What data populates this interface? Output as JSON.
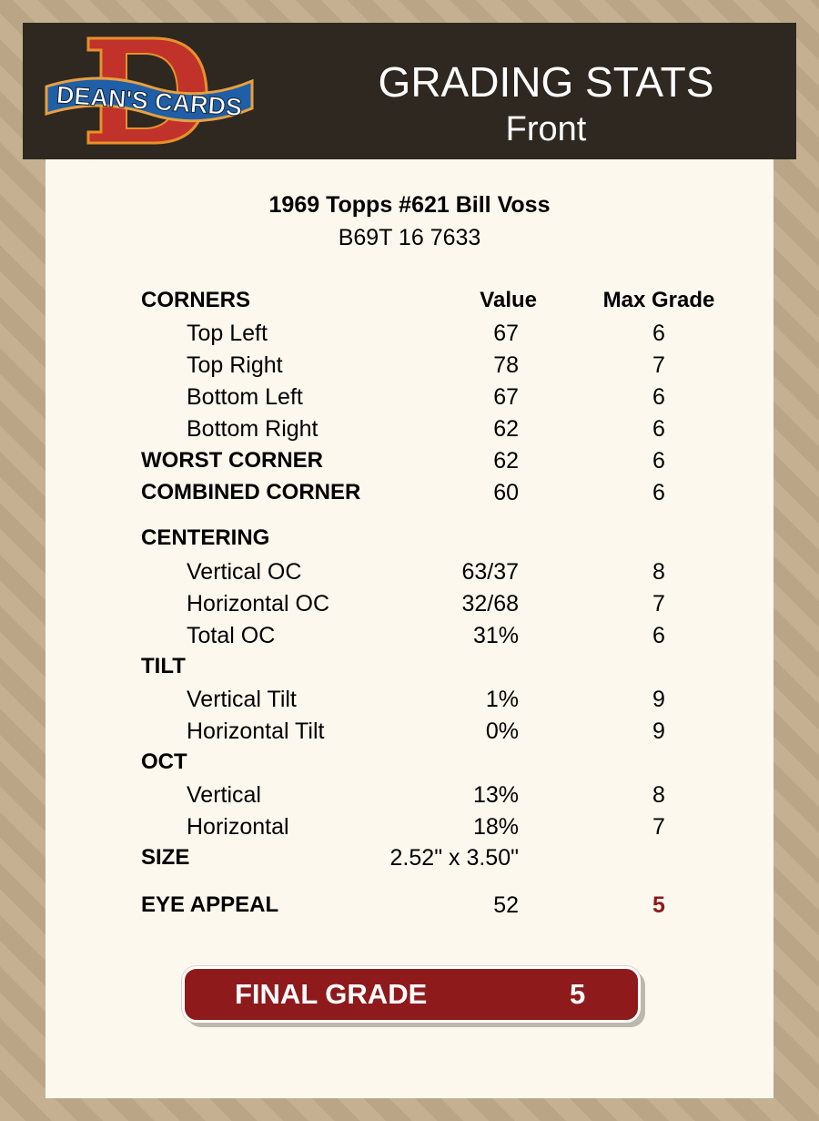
{
  "header": {
    "logo_text": "DEAN'S CARDS",
    "title": "GRADING STATS",
    "subtitle": "Front"
  },
  "card": {
    "title": "1969 Topps #621 Bill Voss",
    "id": "B69T 16 7633"
  },
  "columns": {
    "value": "Value",
    "max": "Max Grade"
  },
  "rows": [
    {
      "type": "sec",
      "label": "CORNERS",
      "value": "",
      "max": ""
    },
    {
      "type": "sub",
      "label": "Top Left",
      "value": "67",
      "max": "6"
    },
    {
      "type": "sub",
      "label": "Top Right",
      "value": "78",
      "max": "7"
    },
    {
      "type": "sub",
      "label": "Bottom Left",
      "value": "67",
      "max": "6"
    },
    {
      "type": "sub",
      "label": "Bottom Right",
      "value": "62",
      "max": "6"
    },
    {
      "type": "bold",
      "label": "WORST CORNER",
      "value": "62",
      "max": "6"
    },
    {
      "type": "bold",
      "label": "COMBINED CORNER",
      "value": "60",
      "max": "6"
    },
    {
      "type": "sec",
      "label": "CENTERING",
      "value": "",
      "max": ""
    },
    {
      "type": "sub",
      "label": "Vertical OC",
      "value": "63/37",
      "max": "8"
    },
    {
      "type": "sub",
      "label": "Horizontal OC",
      "value": "32/68",
      "max": "7"
    },
    {
      "type": "sub",
      "label": "Total OC",
      "value": "31%",
      "max": "6"
    },
    {
      "type": "sec",
      "label": "TILT",
      "value": "",
      "max": ""
    },
    {
      "type": "sub",
      "label": "Vertical Tilt",
      "value": "1%",
      "max": "9"
    },
    {
      "type": "sub",
      "label": "Horizontal Tilt",
      "value": "0%",
      "max": "9"
    },
    {
      "type": "sec",
      "label": "OCT",
      "value": "",
      "max": ""
    },
    {
      "type": "sub",
      "label": "Vertical",
      "value": "13%",
      "max": "8"
    },
    {
      "type": "sub",
      "label": "Horizontal",
      "value": "18%",
      "max": "7"
    },
    {
      "type": "bold",
      "label": "SIZE",
      "value": "2.52\" x 3.50\"",
      "max": ""
    },
    {
      "type": "bold",
      "label": "EYE APPEAL",
      "value": "52",
      "max": "5",
      "highlight": true
    }
  ],
  "final": {
    "label": "FINAL GRADE",
    "value": "5"
  },
  "colors": {
    "header_bg": "#2e2820",
    "panel_bg": "#fcf8ee",
    "accent_red": "#8f1a1c"
  }
}
